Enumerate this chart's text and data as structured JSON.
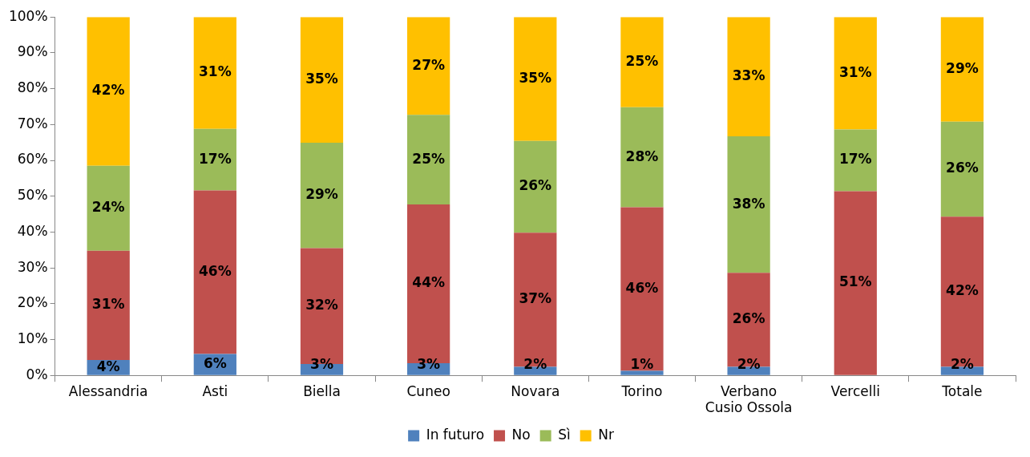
{
  "chart_data": {
    "type": "bar",
    "stacked": true,
    "categories": [
      "Alessandria",
      "Asti",
      "Biella",
      "Cuneo",
      "Novara",
      "Torino",
      "Verbano Cusio Ossola",
      "Vercelli",
      "Totale"
    ],
    "series": [
      {
        "name": "In futuro",
        "color": "#4f81bd",
        "values": [
          4.3,
          6.0,
          3.2,
          3.4,
          2.4,
          1.3,
          2.4,
          0,
          2.4
        ],
        "value_labels": [
          "4%",
          "6%",
          "3%",
          "3%",
          "2%",
          "1%",
          "2%",
          null,
          "2%"
        ]
      },
      {
        "name": "No",
        "color": "#c0504d",
        "values": [
          30.5,
          45.6,
          32.3,
          44.3,
          37.4,
          45.6,
          26.2,
          51.4,
          41.9
        ],
        "value_labels": [
          "31%",
          "46%",
          "32%",
          "44%",
          "37%",
          "46%",
          "26%",
          "51%",
          "42%"
        ]
      },
      {
        "name": "Sì",
        "color": "#9bbb59",
        "values": [
          23.7,
          17.2,
          29.4,
          25.0,
          25.6,
          27.9,
          38.1,
          17.2,
          26.5
        ],
        "value_labels": [
          "24%",
          "17%",
          "29%",
          "25%",
          "26%",
          "28%",
          "38%",
          "17%",
          "26%"
        ]
      },
      {
        "name": "Nr",
        "color": "#ffc000",
        "values": [
          41.5,
          31.2,
          35.1,
          27.3,
          34.6,
          25.2,
          33.3,
          31.4,
          29.2
        ],
        "value_labels": [
          "42%",
          "31%",
          "35%",
          "27%",
          "35%",
          "25%",
          "33%",
          "31%",
          "29%"
        ]
      }
    ],
    "ylim": [
      0,
      100
    ],
    "yticks": [
      {
        "value": 0,
        "label": "0%"
      },
      {
        "value": 10,
        "label": "10%"
      },
      {
        "value": 20,
        "label": "20%"
      },
      {
        "value": 30,
        "label": "30%"
      },
      {
        "value": 40,
        "label": "40%"
      },
      {
        "value": 50,
        "label": "50%"
      },
      {
        "value": 60,
        "label": "60%"
      },
      {
        "value": 70,
        "label": "70%"
      },
      {
        "value": 80,
        "label": "80%"
      },
      {
        "value": 90,
        "label": "90%"
      },
      {
        "value": 100,
        "label": "100%"
      }
    ],
    "grid": false,
    "legend": "bottom"
  }
}
